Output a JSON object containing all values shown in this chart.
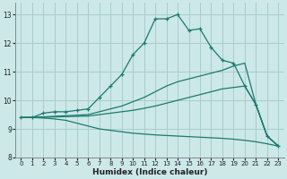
{
  "xlabel": "Humidex (Indice chaleur)",
  "bg_color": "#cce8e8",
  "grid_color": "#aacccc",
  "line_color": "#1a7a6e",
  "xlim": [
    -0.5,
    23.5
  ],
  "ylim": [
    8.0,
    13.4
  ],
  "xticks": [
    0,
    1,
    2,
    3,
    4,
    5,
    6,
    7,
    8,
    9,
    10,
    11,
    12,
    13,
    14,
    15,
    16,
    17,
    18,
    19,
    20,
    21,
    22,
    23
  ],
  "yticks": [
    8,
    9,
    10,
    11,
    12,
    13
  ],
  "lines": [
    {
      "x": [
        0,
        1,
        2,
        3,
        4,
        5,
        6,
        7,
        8,
        9,
        10,
        11,
        12,
        13,
        14,
        15,
        16,
        17,
        18,
        19,
        20,
        21,
        22,
        23
      ],
      "y": [
        9.4,
        9.4,
        9.55,
        9.6,
        9.6,
        9.65,
        9.7,
        10.1,
        10.5,
        10.9,
        11.6,
        12.0,
        12.85,
        12.85,
        13.0,
        12.45,
        12.5,
        11.85,
        11.4,
        11.3,
        10.5,
        9.85,
        8.75,
        8.4
      ],
      "marker": true
    },
    {
      "x": [
        0,
        1,
        23
      ],
      "y": [
        9.4,
        9.4,
        8.4
      ],
      "straight": true,
      "end_x": 20,
      "end_y": 11.3,
      "marker": false
    },
    {
      "x": [
        0,
        1,
        20,
        21,
        22,
        23
      ],
      "y": [
        9.4,
        9.4,
        10.5,
        9.85,
        8.75,
        8.4
      ],
      "marker": false
    },
    {
      "x": [
        0,
        1,
        23
      ],
      "y": [
        9.4,
        9.4,
        8.4
      ],
      "marker": false
    }
  ],
  "line2_x": [
    0,
    1,
    2,
    3,
    4,
    5,
    6,
    7,
    8,
    9,
    10,
    11,
    12,
    13,
    14,
    15,
    16,
    17,
    18,
    19,
    20,
    21,
    22,
    23
  ],
  "line2_y": [
    9.4,
    9.4,
    9.42,
    9.44,
    9.46,
    9.48,
    9.5,
    9.6,
    9.7,
    9.8,
    9.95,
    10.1,
    10.3,
    10.5,
    10.65,
    10.75,
    10.85,
    10.95,
    11.05,
    11.2,
    11.3,
    9.85,
    8.75,
    8.4
  ],
  "line3_x": [
    0,
    1,
    2,
    3,
    4,
    5,
    6,
    7,
    8,
    9,
    10,
    11,
    12,
    13,
    14,
    15,
    16,
    17,
    18,
    19,
    20,
    21,
    22,
    23
  ],
  "line3_y": [
    9.4,
    9.4,
    9.41,
    9.42,
    9.43,
    9.44,
    9.45,
    9.5,
    9.55,
    9.6,
    9.65,
    9.72,
    9.8,
    9.9,
    10.0,
    10.1,
    10.2,
    10.3,
    10.4,
    10.45,
    10.5,
    9.85,
    8.75,
    8.4
  ],
  "line4_x": [
    0,
    1,
    2,
    3,
    4,
    5,
    6,
    7,
    8,
    9,
    10,
    11,
    12,
    13,
    14,
    15,
    16,
    17,
    18,
    19,
    20,
    21,
    22,
    23
  ],
  "line4_y": [
    9.4,
    9.4,
    9.38,
    9.35,
    9.3,
    9.2,
    9.1,
    9.0,
    8.95,
    8.9,
    8.85,
    8.82,
    8.79,
    8.77,
    8.75,
    8.73,
    8.71,
    8.69,
    8.67,
    8.64,
    8.6,
    8.55,
    8.48,
    8.4
  ]
}
